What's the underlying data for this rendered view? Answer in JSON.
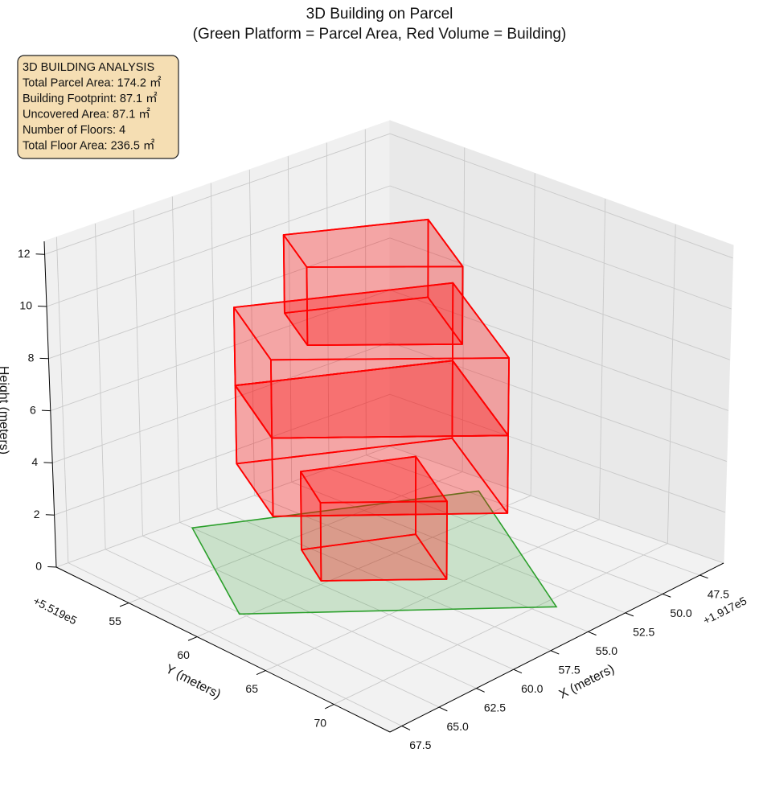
{
  "chart_data": {
    "type": "3d_prisms",
    "title": "3D Building on Parcel",
    "subtitle": "(Green Platform = Parcel Area, Red Volume = Building)",
    "info_box": [
      "3D BUILDING ANALYSIS",
      "Total Parcel Area: 174.2 ㎡",
      "Building Footprint: 87.1 ㎡",
      "Uncovered Area: 87.1 ㎡",
      "Number of Floors: 4",
      "Total Floor Area: 236.5 ㎡"
    ],
    "xlabel": "X (meters)",
    "ylabel": "Y (meters)",
    "zlabel": "Height (meters)",
    "x_offset": "+1.917e5",
    "y_offset": "+5.519e5",
    "xlim": [
      45.9,
      68.3
    ],
    "ylim": [
      49.7,
      74.1
    ],
    "zlim": [
      0,
      12.5
    ],
    "xticks": [
      47.5,
      {
        "value": 50,
        "label": "50.0"
      },
      52.5,
      {
        "value": 55,
        "label": "55.0"
      },
      57.5,
      {
        "value": 60,
        "label": "60.0"
      },
      62.5,
      {
        "value": 65,
        "label": "65.0"
      },
      67.5
    ],
    "yticks": [
      55,
      60,
      65,
      70
    ],
    "zticks": [
      0,
      2,
      4,
      6,
      8,
      10,
      12
    ],
    "grid": true,
    "parcel": {
      "color": "#2ca02c",
      "x": [
        60.0,
        47.1,
        54.1,
        65.1
      ],
      "y": [
        50.6,
        57.5,
        70.8,
        59.6
      ]
    },
    "building_color": "#ff0000",
    "floors": [
      {
        "x": [
          57.9,
          52.8,
          55.4,
          59.7
        ],
        "y": [
          56.3,
          59.1,
          64.2,
          59.7
        ],
        "z": [
          0,
          3
        ]
      },
      {
        "x": [
          59.5,
          50.1,
          54.4,
          62.4
        ],
        "y": [
          53.4,
          58.8,
          67.5,
          59.2
        ],
        "z": [
          3,
          6
        ]
      },
      {
        "x": [
          59.5,
          50.1,
          54.4,
          62.4
        ],
        "y": [
          53.4,
          58.8,
          67.5,
          59.2
        ],
        "z": [
          6,
          9
        ]
      },
      {
        "x": [
          58.2,
          52.1,
          54.8,
          60.0
        ],
        "y": [
          55.6,
          59.2,
          64.6,
          59.2
        ],
        "z": [
          9,
          12
        ]
      }
    ]
  }
}
